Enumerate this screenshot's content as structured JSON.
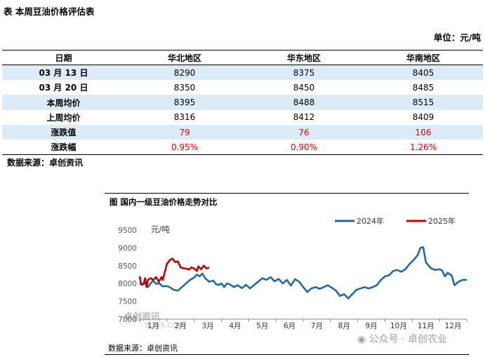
{
  "table": {
    "title": "表  本周豆油价格评估表",
    "unit": "单位：元/吨",
    "headers": [
      "日期",
      "华北地区",
      "华东地区",
      "华南地区"
    ],
    "rows": [
      {
        "label": "03 月 13 日",
        "values": [
          "8290",
          "8375",
          "8405"
        ]
      },
      {
        "label": "03 月 20 日",
        "values": [
          "8350",
          "8450",
          "8485"
        ]
      },
      {
        "label": "本周均价",
        "values": [
          "8395",
          "8488",
          "8515"
        ]
      },
      {
        "label": "上周均价",
        "values": [
          "8316",
          "8412",
          "8409"
        ]
      },
      {
        "label": "涨跌值",
        "values": [
          "79",
          "76",
          "106"
        ]
      },
      {
        "label": "涨跌幅",
        "values": [
          "0.95%",
          "0.90%",
          "1.26%"
        ]
      }
    ],
    "source": "数据来源：卓创资讯"
  },
  "chart": {
    "title": "图  国内一级豆油价格走势对比",
    "source": "数据来源：卓创资讯",
    "watermark_logo": "卓创资讯",
    "watermark_sub": "SCI99.COM",
    "watermark_wechat": "公众号 · 卓创农业",
    "colors": {
      "2024": "#1f6aa5",
      "2025": "#c00000"
    }
  },
  "chart_data": {
    "type": "line",
    "title": "图  国内一级豆油价格走势对比",
    "ylabel": "元/吨",
    "ylim": [
      7000,
      9500
    ],
    "yticks": [
      7000,
      7500,
      8000,
      8500,
      9000,
      9500
    ],
    "categories": [
      "1月",
      "2月",
      "3月",
      "4月",
      "5月",
      "6月",
      "7月",
      "8月",
      "9月",
      "10月",
      "11月",
      "12月"
    ],
    "series": [
      {
        "name": "2024年",
        "points": [
          [
            1,
            7990
          ],
          [
            1.1,
            7960
          ],
          [
            1.2,
            8020
          ],
          [
            1.3,
            7900
          ],
          [
            1.4,
            8000
          ],
          [
            1.5,
            8080
          ],
          [
            1.6,
            7990
          ],
          [
            1.7,
            8010
          ],
          [
            1.85,
            7920
          ],
          [
            2,
            7930
          ],
          [
            2.1,
            7900
          ],
          [
            2.25,
            7820
          ],
          [
            2.4,
            7800
          ],
          [
            2.55,
            7900
          ],
          [
            2.7,
            8000
          ],
          [
            2.85,
            8100
          ],
          [
            3,
            8170
          ],
          [
            3.1,
            8250
          ],
          [
            3.2,
            8200
          ],
          [
            3.3,
            8280
          ],
          [
            3.4,
            8150
          ],
          [
            3.55,
            8050
          ],
          [
            3.7,
            8080
          ],
          [
            3.8,
            7980
          ],
          [
            3.9,
            7960
          ],
          [
            4,
            8000
          ],
          [
            4.1,
            7900
          ],
          [
            4.2,
            8000
          ],
          [
            4.3,
            7980
          ],
          [
            4.45,
            7900
          ],
          [
            4.6,
            7950
          ],
          [
            4.75,
            7870
          ],
          [
            4.9,
            7960
          ],
          [
            5.05,
            7860
          ],
          [
            5.2,
            7960
          ],
          [
            5.35,
            8050
          ],
          [
            5.5,
            8150
          ],
          [
            5.65,
            8100
          ],
          [
            5.8,
            8180
          ],
          [
            5.95,
            8060
          ],
          [
            6.1,
            8130
          ],
          [
            6.25,
            8000
          ],
          [
            6.4,
            8100
          ],
          [
            6.55,
            7940
          ],
          [
            6.7,
            8120
          ],
          [
            6.85,
            8050
          ],
          [
            7,
            7900
          ],
          [
            7.15,
            7760
          ],
          [
            7.3,
            7860
          ],
          [
            7.45,
            7900
          ],
          [
            7.6,
            7850
          ],
          [
            7.75,
            7900
          ],
          [
            7.9,
            7950
          ],
          [
            8.05,
            7880
          ],
          [
            8.2,
            7800
          ],
          [
            8.35,
            7650
          ],
          [
            8.5,
            7700
          ],
          [
            8.65,
            7580
          ],
          [
            8.8,
            7700
          ],
          [
            8.95,
            7820
          ],
          [
            9.1,
            7860
          ],
          [
            9.25,
            7900
          ],
          [
            9.4,
            7860
          ],
          [
            9.55,
            7900
          ],
          [
            9.7,
            7950
          ],
          [
            9.85,
            8100
          ],
          [
            10,
            8200
          ],
          [
            10.15,
            8230
          ],
          [
            10.3,
            8350
          ],
          [
            10.45,
            8380
          ],
          [
            10.6,
            8330
          ],
          [
            10.75,
            8400
          ],
          [
            10.9,
            8550
          ],
          [
            11,
            8620
          ],
          [
            11.1,
            8700
          ],
          [
            11.2,
            8800
          ],
          [
            11.3,
            9000
          ],
          [
            11.4,
            9020
          ],
          [
            11.5,
            8600
          ],
          [
            11.6,
            8500
          ],
          [
            11.7,
            8420
          ],
          [
            11.85,
            8380
          ],
          [
            12,
            8400
          ],
          [
            12.1,
            8360
          ],
          [
            12.2,
            8200
          ],
          [
            12.3,
            8300
          ],
          [
            12.45,
            8220
          ],
          [
            12.55,
            7950
          ],
          [
            12.7,
            8050
          ],
          [
            12.85,
            8100
          ],
          [
            13,
            8100
          ]
        ]
      },
      {
        "name": "2025年",
        "points": [
          [
            1,
            8200
          ],
          [
            1.05,
            7980
          ],
          [
            1.15,
            8000
          ],
          [
            1.2,
            8150
          ],
          [
            1.25,
            7900
          ],
          [
            1.3,
            8100
          ],
          [
            1.4,
            8150
          ],
          [
            1.5,
            8100
          ],
          [
            1.6,
            8180
          ],
          [
            1.7,
            8050
          ],
          [
            1.8,
            8180
          ],
          [
            1.85,
            8100
          ],
          [
            1.9,
            8250
          ],
          [
            2,
            8550
          ],
          [
            2.1,
            8650
          ],
          [
            2.2,
            8700
          ],
          [
            2.3,
            8600
          ],
          [
            2.4,
            8620
          ],
          [
            2.5,
            8450
          ],
          [
            2.6,
            8430
          ],
          [
            2.7,
            8420
          ],
          [
            2.8,
            8390
          ],
          [
            2.9,
            8450
          ],
          [
            3,
            8420
          ],
          [
            3.1,
            8350
          ],
          [
            3.15,
            8480
          ],
          [
            3.25,
            8400
          ],
          [
            3.35,
            8500
          ],
          [
            3.45,
            8420
          ],
          [
            3.55,
            8450
          ]
        ]
      }
    ]
  }
}
